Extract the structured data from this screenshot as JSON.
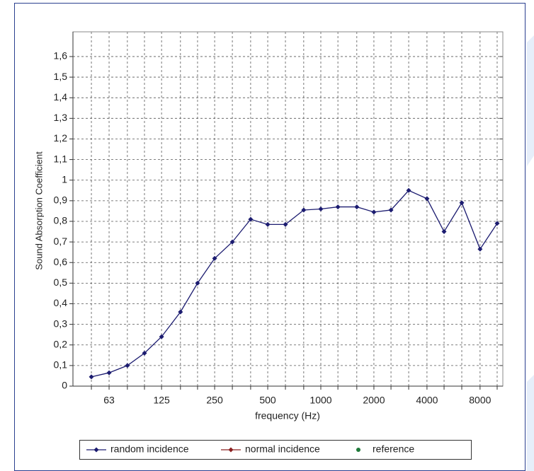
{
  "chart_data": {
    "type": "line",
    "y_label": "Sound Absorption Coefficient",
    "x_label": "frequency (Hz)",
    "x": [
      50,
      63,
      80,
      100,
      125,
      160,
      200,
      250,
      315,
      400,
      500,
      630,
      800,
      1000,
      1250,
      1600,
      2000,
      2500,
      3150,
      4000,
      5000,
      6300,
      8000,
      10000
    ],
    "x_scale": "log",
    "xlim": [
      39.3,
      10770
    ],
    "xticks": [
      63,
      125,
      250,
      500,
      1000,
      2000,
      4000,
      8000
    ],
    "ylim": [
      0,
      1.72
    ],
    "yticks": [
      0,
      {
        "value": 0.1,
        "label": "0,1"
      },
      {
        "value": 0.2,
        "label": "0,2"
      },
      {
        "value": 0.3,
        "label": "0,3"
      },
      {
        "value": 0.4,
        "label": "0,4"
      },
      {
        "value": 0.5,
        "label": "0,5"
      },
      {
        "value": 0.6,
        "label": "0,6"
      },
      {
        "value": 0.7,
        "label": "0,7"
      },
      {
        "value": 0.8,
        "label": "0,8"
      },
      {
        "value": 0.9,
        "label": "0,9"
      },
      1,
      {
        "value": 1.1,
        "label": "1,1"
      },
      {
        "value": 1.2,
        "label": "1,2"
      },
      {
        "value": 1.3,
        "label": "1,3"
      },
      {
        "value": 1.4,
        "label": "1,4"
      },
      {
        "value": 1.5,
        "label": "1,5"
      },
      {
        "value": 1.6,
        "label": "1,6"
      }
    ],
    "grid": true,
    "legend": "bottom",
    "series": [
      {
        "name": "random incidence",
        "color": "#1c1c70",
        "marker": "diamond",
        "values": [
          0.045,
          0.065,
          0.1,
          0.16,
          0.24,
          0.36,
          0.5,
          0.62,
          0.7,
          0.81,
          0.785,
          0.785,
          0.855,
          0.86,
          0.87,
          0.87,
          0.845,
          0.855,
          0.95,
          0.91,
          0.75,
          0.89,
          0.665,
          0.79
        ]
      },
      {
        "name": "normal incidence",
        "color": "#8b2020",
        "marker": "diamond",
        "values": [
          null,
          null,
          null,
          null,
          null,
          null,
          null,
          null,
          null,
          null,
          null,
          null,
          null,
          null,
          null,
          null,
          null,
          null,
          null,
          null,
          null,
          null,
          null,
          null
        ]
      },
      {
        "name": "reference",
        "color": "#1f7a3a",
        "marker": "dot",
        "values": [
          null,
          null,
          null,
          null,
          null,
          null,
          null,
          null,
          null,
          null,
          null,
          null,
          null,
          null,
          null,
          null,
          null,
          null,
          null,
          null,
          null,
          null,
          null,
          null
        ]
      }
    ]
  }
}
